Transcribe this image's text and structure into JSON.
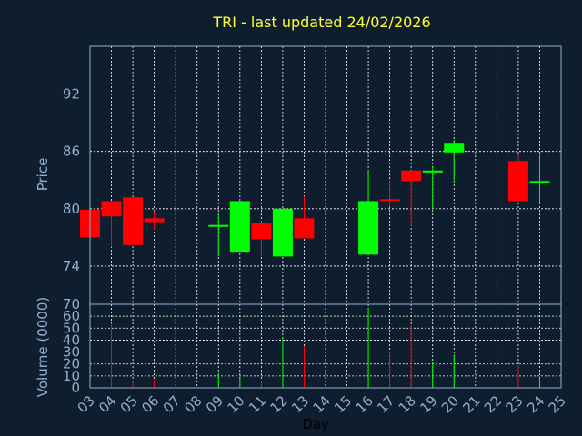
{
  "chart_data": [
    {
      "type": "candlestick",
      "title": "TRI - last updated 24/02/2026",
      "xlabel": "",
      "ylabel": "Price",
      "ylim": [
        70,
        97
      ],
      "yticks": [
        70,
        74,
        80,
        86,
        92
      ],
      "grid": true,
      "colors": {
        "up": "#00ff00",
        "down": "#ff0000",
        "grid": "#ffffff",
        "axes": "#8fb0d0",
        "title": "#ffff33",
        "background": "#0f1e2e"
      },
      "candles": [
        {
          "day": "03",
          "open": 79.9,
          "high": 80.0,
          "low": 77.0,
          "close": 77.0
        },
        {
          "day": "04",
          "open": 80.8,
          "high": 80.8,
          "low": 76.0,
          "close": 79.2
        },
        {
          "day": "05",
          "open": 81.2,
          "high": 81.2,
          "low": 76.2,
          "close": 76.2
        },
        {
          "day": "06",
          "open": 79.0,
          "high": 79.8,
          "low": 77.8,
          "close": 78.6
        },
        {
          "day": "09",
          "open": 78.2,
          "high": 79.5,
          "low": 75.0,
          "close": 78.3
        },
        {
          "day": "10",
          "open": 75.5,
          "high": 80.8,
          "low": 75.5,
          "close": 80.8
        },
        {
          "day": "11",
          "open": 78.5,
          "high": 78.7,
          "low": 75.0,
          "close": 76.8
        },
        {
          "day": "12",
          "open": 75.0,
          "high": 80.0,
          "low": 75.0,
          "close": 80.0
        },
        {
          "day": "13",
          "open": 79.0,
          "high": 81.3,
          "low": 76.9,
          "close": 76.9
        },
        {
          "day": "16",
          "open": 75.2,
          "high": 84.0,
          "low": 75.2,
          "close": 80.8
        },
        {
          "day": "17",
          "open": 81.0,
          "high": 83.0,
          "low": 80.2,
          "close": 80.9
        },
        {
          "day": "18",
          "open": 84.0,
          "high": 84.0,
          "low": 78.2,
          "close": 82.9
        },
        {
          "day": "19",
          "open": 83.8,
          "high": 84.5,
          "low": 80.0,
          "close": 84.0
        },
        {
          "day": "20",
          "open": 85.9,
          "high": 87.2,
          "low": 82.8,
          "close": 86.9
        },
        {
          "day": "23",
          "open": 85.0,
          "high": 85.7,
          "low": 80.7,
          "close": 80.8
        },
        {
          "day": "24",
          "open": 82.8,
          "high": 85.6,
          "low": 80.6,
          "close": 82.9
        }
      ]
    },
    {
      "type": "bar",
      "xlabel": "Day",
      "ylabel": "Volume (0000)",
      "ylim": [
        0,
        70
      ],
      "yticks": [
        0,
        10,
        20,
        30,
        40,
        50,
        60,
        70
      ],
      "categories": [
        "03",
        "04",
        "05",
        "06",
        "07",
        "08",
        "09",
        "10",
        "11",
        "12",
        "13",
        "14",
        "15",
        "16",
        "17",
        "18",
        "19",
        "20",
        "21",
        "22",
        "23",
        "24",
        "25"
      ],
      "grid": true,
      "volumes": [
        {
          "day": "04",
          "value": 54,
          "direction": "down"
        },
        {
          "day": "05",
          "value": 5,
          "direction": "down"
        },
        {
          "day": "06",
          "value": 7,
          "direction": "down"
        },
        {
          "day": "09",
          "value": 12,
          "direction": "up"
        },
        {
          "day": "10",
          "value": 8,
          "direction": "up"
        },
        {
          "day": "11",
          "value": 6,
          "direction": "down"
        },
        {
          "day": "12",
          "value": 42,
          "direction": "up"
        },
        {
          "day": "13",
          "value": 35,
          "direction": "down"
        },
        {
          "day": "16",
          "value": 67,
          "direction": "up"
        },
        {
          "day": "17",
          "value": 30,
          "direction": "down"
        },
        {
          "day": "18",
          "value": 53,
          "direction": "down"
        },
        {
          "day": "19",
          "value": 22,
          "direction": "up"
        },
        {
          "day": "20",
          "value": 28,
          "direction": "up"
        },
        {
          "day": "23",
          "value": 19,
          "direction": "down"
        },
        {
          "day": "24",
          "value": 8,
          "direction": "up"
        }
      ]
    }
  ]
}
